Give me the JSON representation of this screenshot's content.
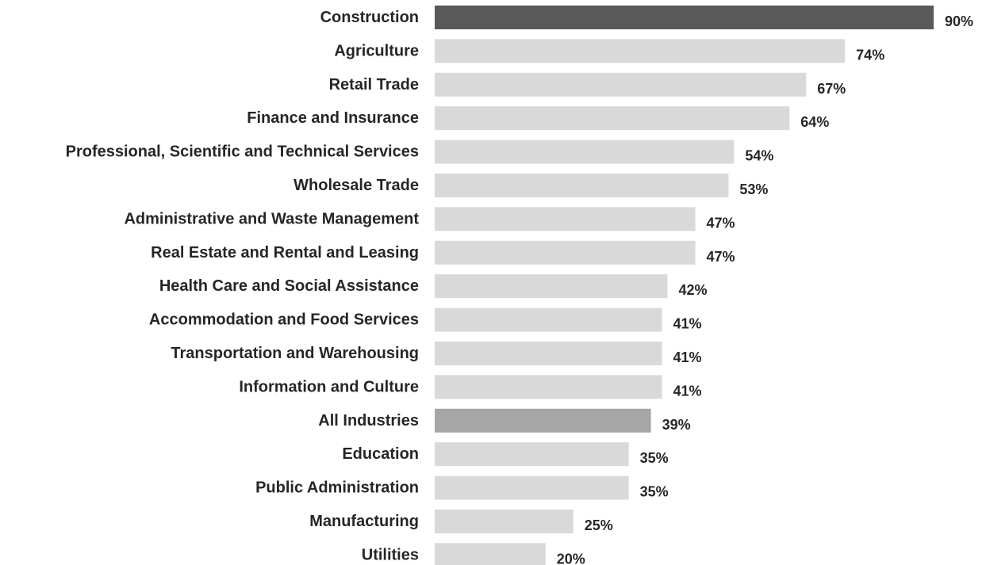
{
  "chart_data": {
    "type": "bar",
    "orientation": "horizontal",
    "categories": [
      "Construction",
      "Agriculture",
      "Retail Trade",
      "Finance and Insurance",
      "Professional, Scientific and Technical Services",
      "Wholesale Trade",
      "Administrative and Waste Management",
      "Real Estate and Rental and Leasing",
      "Health Care and Social Assistance",
      "Accommodation and Food Services",
      "Transportation and Warehousing",
      "Information and Culture",
      "All Industries",
      "Education",
      "Public Administration",
      "Manufacturing",
      "Utilities"
    ],
    "values": [
      90,
      74,
      67,
      64,
      54,
      53,
      47,
      47,
      42,
      41,
      41,
      41,
      39,
      35,
      35,
      25,
      20
    ],
    "value_labels": [
      "90%",
      "74%",
      "67%",
      "64%",
      "54%",
      "53%",
      "47%",
      "47%",
      "42%",
      "41%",
      "41%",
      "41%",
      "39%",
      "35%",
      "35%",
      "25%",
      "20%"
    ],
    "bar_colors": [
      "#595959",
      "#d9d9d9",
      "#d9d9d9",
      "#d9d9d9",
      "#d9d9d9",
      "#d9d9d9",
      "#d9d9d9",
      "#d9d9d9",
      "#d9d9d9",
      "#d9d9d9",
      "#d9d9d9",
      "#d9d9d9",
      "#a6a6a6",
      "#d9d9d9",
      "#d9d9d9",
      "#d9d9d9",
      "#d9d9d9"
    ],
    "xlim": [
      0,
      90
    ],
    "unit": "%",
    "grid": false,
    "legend": "none",
    "title": "",
    "xlabel": "",
    "ylabel": ""
  }
}
